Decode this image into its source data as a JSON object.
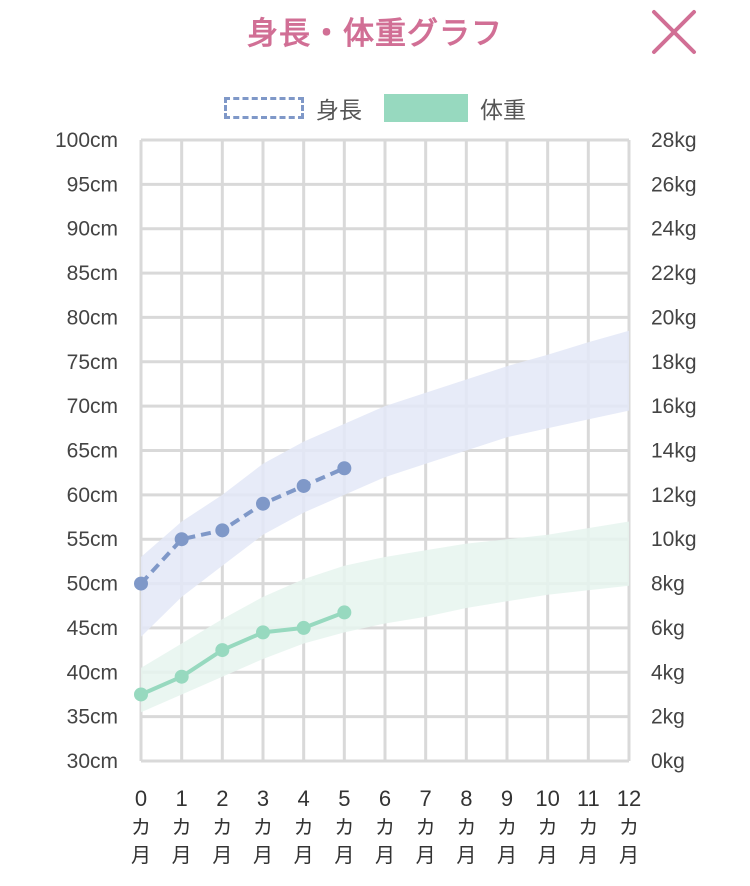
{
  "header": {
    "title": "身長・体重グラフ",
    "close_icon": "close-x-icon",
    "title_color": "#d16f95"
  },
  "chart_data": {
    "type": "line",
    "legend": [
      {
        "name": "身長",
        "style": "dashed",
        "color": "#7f98c8"
      },
      {
        "name": "体重",
        "style": "solid",
        "color": "#97d9bf"
      }
    ],
    "legend_position": "top",
    "grid": true,
    "x": {
      "categories": [
        "0",
        "1",
        "2",
        "3",
        "4",
        "5",
        "6",
        "7",
        "8",
        "9",
        "10",
        "11",
        "12"
      ],
      "unit_chars": [
        "カ",
        "月"
      ],
      "range": [
        0,
        12
      ]
    },
    "y_left": {
      "ticks": [
        "100cm",
        "95cm",
        "90cm",
        "85cm",
        "80cm",
        "75cm",
        "70cm",
        "65cm",
        "60cm",
        "55cm",
        "50cm",
        "45cm",
        "40cm",
        "35cm",
        "30cm"
      ],
      "range": [
        30,
        100
      ]
    },
    "y_right": {
      "ticks": [
        "28kg",
        "26kg",
        "24kg",
        "22kg",
        "20kg",
        "18kg",
        "16kg",
        "14kg",
        "12kg",
        "10kg",
        "8kg",
        "6kg",
        "4kg",
        "2kg",
        "0kg"
      ],
      "range": [
        0,
        28
      ]
    },
    "series": [
      {
        "name": "身長",
        "axis": "left",
        "color": "#7f98c8",
        "style": "dashed",
        "x": [
          0,
          1,
          2,
          3,
          4,
          5
        ],
        "y": [
          50,
          55,
          56,
          59,
          61,
          63
        ]
      },
      {
        "name": "体重",
        "axis": "right",
        "color": "#97d9bf",
        "style": "solid",
        "x": [
          0,
          1,
          2,
          3,
          4,
          5
        ],
        "y": [
          3.0,
          3.8,
          5.0,
          5.8,
          6.0,
          6.7
        ]
      }
    ],
    "bands": [
      {
        "axis": "left",
        "color": "#e3e8f7",
        "x": [
          0,
          1,
          2,
          3,
          4,
          5,
          6,
          7,
          8,
          9,
          10,
          11,
          12
        ],
        "upper": [
          53,
          57,
          60,
          63.5,
          66,
          68,
          70,
          71.5,
          73,
          74.5,
          75.8,
          77.2,
          78.5
        ],
        "lower": [
          44,
          48.5,
          52,
          55.5,
          58,
          60,
          62,
          63.5,
          65,
          66.5,
          67.5,
          68.5,
          69.5
        ]
      },
      {
        "axis": "right",
        "color": "#e6f5ee",
        "x": [
          0,
          1,
          2,
          3,
          4,
          5,
          6,
          7,
          8,
          9,
          10,
          11,
          12
        ],
        "upper": [
          4.2,
          5.3,
          6.4,
          7.4,
          8.2,
          8.8,
          9.2,
          9.5,
          9.8,
          10.0,
          10.2,
          10.5,
          10.8
        ],
        "lower": [
          2.2,
          3.0,
          3.8,
          4.6,
          5.3,
          5.8,
          6.2,
          6.5,
          6.9,
          7.2,
          7.5,
          7.7,
          7.9
        ]
      }
    ]
  }
}
